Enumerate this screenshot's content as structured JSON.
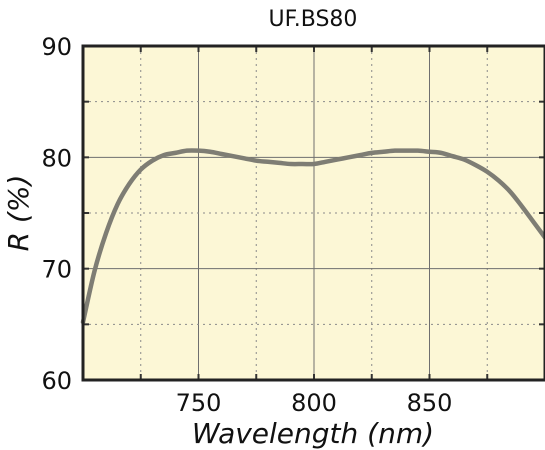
{
  "chart_data": {
    "type": "line",
    "title": "UF.BS80",
    "xlabel": "Wavelength (nm)",
    "ylabel": "R (%)",
    "xlim": [
      700,
      900
    ],
    "ylim": [
      60,
      90
    ],
    "xticks": [
      750,
      800,
      850
    ],
    "yticks": [
      60,
      70,
      80,
      90
    ],
    "grid": true,
    "background_color": "#fcf7d6",
    "line_color": "#7e7d74",
    "series": [
      {
        "x": [
          700,
          705,
          710,
          715,
          720,
          725,
          730,
          735,
          740,
          745,
          750,
          755,
          760,
          765,
          770,
          775,
          780,
          785,
          790,
          795,
          800,
          805,
          810,
          815,
          820,
          825,
          830,
          835,
          840,
          845,
          850,
          855,
          860,
          865,
          870,
          875,
          880,
          885,
          890,
          895,
          900
        ],
        "y": [
          65.2,
          69.8,
          73.2,
          75.8,
          77.6,
          78.9,
          79.7,
          80.2,
          80.4,
          80.6,
          80.6,
          80.5,
          80.3,
          80.1,
          79.9,
          79.7,
          79.6,
          79.5,
          79.4,
          79.4,
          79.4,
          79.6,
          79.8,
          80.0,
          80.2,
          80.4,
          80.5,
          80.6,
          80.6,
          80.6,
          80.5,
          80.4,
          80.1,
          79.8,
          79.3,
          78.7,
          77.9,
          76.9,
          75.6,
          74.2,
          72.8
        ]
      }
    ]
  }
}
